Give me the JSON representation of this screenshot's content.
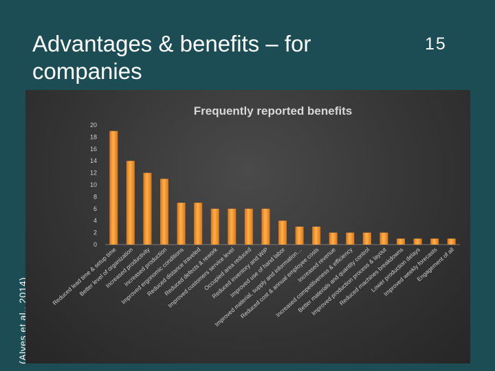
{
  "slide": {
    "title": "Advantages & benefits – for companies",
    "number": "15",
    "citation": "(Alves et al., 2014)"
  },
  "colors": {
    "background": "#1c4d54",
    "bar": "#f0932a",
    "chart_panel": "#3a3a3a"
  },
  "chart_data": {
    "type": "bar",
    "title": "Frequently reported benefits",
    "xlabel": "",
    "ylabel": "",
    "ylim": [
      0,
      20
    ],
    "yticks": [
      0,
      2,
      4,
      6,
      8,
      10,
      12,
      14,
      16,
      18,
      20
    ],
    "grid": false,
    "categories": [
      "Reduced lead time & setup time",
      "Better level of organization",
      "Increased productivity",
      "Increased production",
      "Improved ergonomic conditions",
      "Reduced distance traveled",
      "Reduced defects & rework",
      "Improved customers service level",
      "Occupied area reduced",
      "Reduced inventory and WIP",
      "Improved use of hand labor",
      "Improved material, supply and information…",
      "Reduced cost & annual employee costs",
      "Increased revenue",
      "Increased competitiveness & efficiency",
      "Better materials and quantity control",
      "Improved production process & layout",
      "Reduced machines breakdowns",
      "Lower production delays",
      "Improved weekly forecasts",
      "Engagement of all"
    ],
    "values": [
      19,
      14,
      12,
      11,
      7,
      7,
      6,
      6,
      6,
      6,
      4,
      3,
      3,
      2,
      2,
      2,
      2,
      1,
      1,
      1,
      1
    ]
  }
}
